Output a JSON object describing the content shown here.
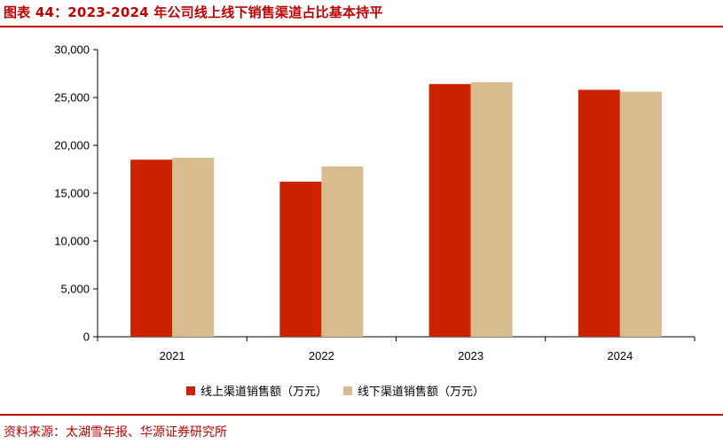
{
  "header": {
    "title": "图表 44：2023-2024 年公司线上线下销售渠道占比基本持平"
  },
  "footer": {
    "source": "资料来源：太湖雪年报、华源证券研究所"
  },
  "colors": {
    "accent": "#c00000",
    "online": "#cc2200",
    "offline": "#d8bc90"
  },
  "chart_data": {
    "type": "bar",
    "categories": [
      "2021",
      "2022",
      "2023",
      "2024"
    ],
    "series": [
      {
        "name": "线上渠道销售额（万元）",
        "values": [
          18500,
          16200,
          26400,
          25800
        ]
      },
      {
        "name": "线下渠道销售额（万元）",
        "values": [
          18700,
          17800,
          26600,
          25600
        ]
      }
    ],
    "ylim": [
      0,
      30000
    ],
    "yticks": [
      "0",
      "5,000",
      "10,000",
      "15,000",
      "20,000",
      "25,000",
      "30,000"
    ],
    "ytick_values": [
      0,
      5000,
      10000,
      15000,
      20000,
      25000,
      30000
    ],
    "grid": false,
    "legend_position": "bottom"
  }
}
